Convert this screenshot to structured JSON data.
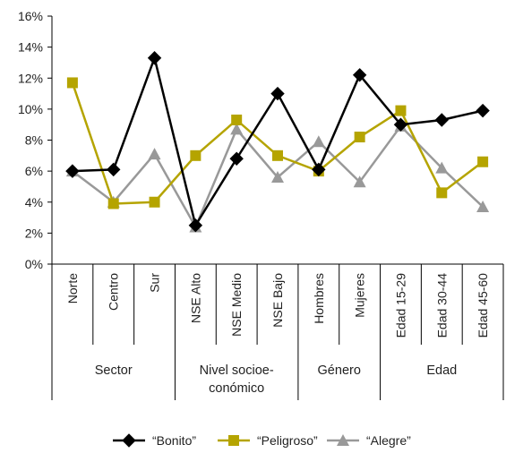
{
  "chart_data": {
    "type": "line",
    "ylim": [
      0,
      16
    ],
    "yticks": [
      "0%",
      "2%",
      "4%",
      "6%",
      "8%",
      "10%",
      "12%",
      "14%",
      "16%"
    ],
    "categories": [
      "Norte",
      "Centro",
      "Sur",
      "NSE Alto",
      "NSE Medio",
      "NSE Bajo",
      "Hombres",
      "Mujeres",
      "Edad 15-29",
      "Edad 30-44",
      "Edad 45-60"
    ],
    "groups": [
      {
        "label_lines": [
          "Sector"
        ],
        "span": 3
      },
      {
        "label_lines": [
          "Nivel socioe-",
          "conómico"
        ],
        "span": 3
      },
      {
        "label_lines": [
          "Género"
        ],
        "span": 2
      },
      {
        "label_lines": [
          "Edad"
        ],
        "span": 3
      }
    ],
    "series": [
      {
        "name": "“Bonito”",
        "color": "#000000",
        "marker": "diamond",
        "values": [
          6.0,
          6.1,
          13.3,
          2.5,
          6.8,
          11.0,
          6.1,
          12.2,
          9.0,
          9.3,
          9.9
        ]
      },
      {
        "name": "“Peligroso”",
        "color": "#b5a400",
        "marker": "square",
        "values": [
          11.7,
          3.9,
          4.0,
          7.0,
          9.3,
          7.0,
          6.0,
          8.2,
          9.9,
          4.6,
          6.6
        ]
      },
      {
        "name": "“Alegre”",
        "color": "#999999",
        "marker": "triangle",
        "values": [
          6.0,
          4.0,
          7.1,
          2.4,
          8.7,
          5.6,
          7.9,
          5.3,
          8.9,
          6.2,
          3.7
        ]
      }
    ],
    "grid": false,
    "legend_position": "bottom"
  }
}
